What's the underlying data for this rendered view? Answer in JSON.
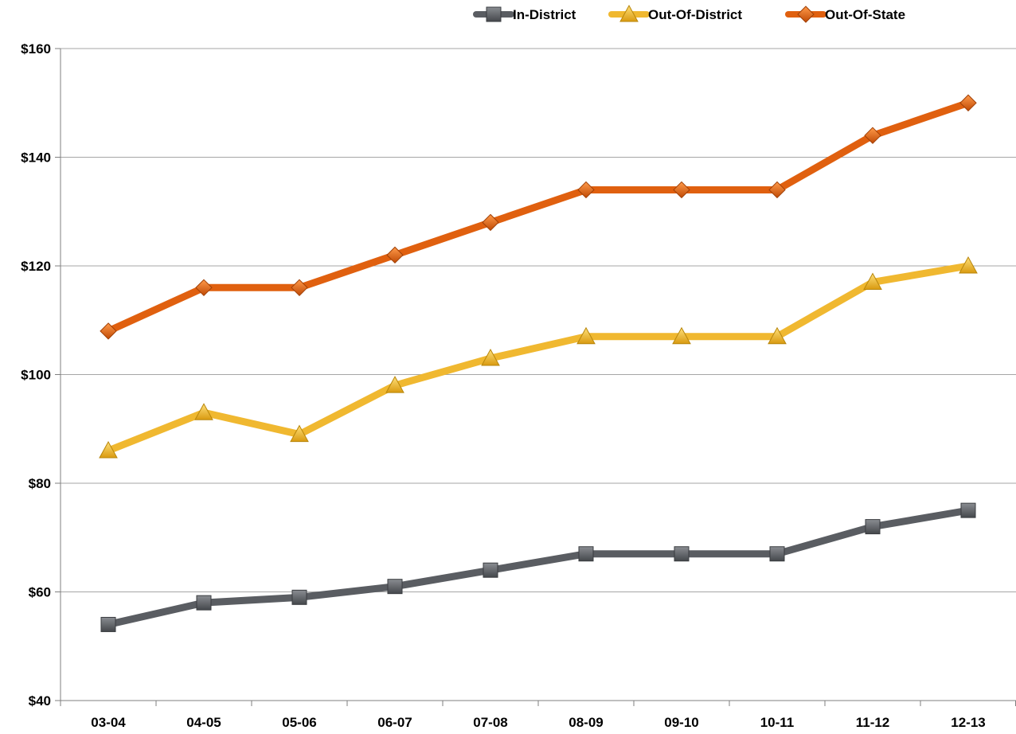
{
  "chart_data": {
    "type": "line",
    "categories": [
      "03-04",
      "04-05",
      "05-06",
      "06-07",
      "07-08",
      "08-09",
      "09-10",
      "10-11",
      "11-12",
      "12-13"
    ],
    "ylim": [
      40,
      160
    ],
    "yticks": [
      40,
      60,
      80,
      100,
      120,
      140,
      160
    ],
    "ytick_labels": [
      "$40",
      "$60",
      "$80",
      "$100",
      "$120",
      "$140",
      "$160"
    ],
    "grid": "horizontal",
    "legend_position": "top-right",
    "series": [
      {
        "name": "In-District",
        "marker": "square",
        "color": "#5a5d62",
        "values": [
          54,
          58,
          59,
          61,
          64,
          67,
          67,
          67,
          72,
          75
        ]
      },
      {
        "name": "Out-Of-District",
        "marker": "triangle",
        "color": "#f0b830",
        "values": [
          86,
          93,
          89,
          98,
          103,
          107,
          107,
          107,
          117,
          120
        ]
      },
      {
        "name": "Out-Of-State",
        "marker": "diamond",
        "color": "#e0600f",
        "values": [
          108,
          116,
          116,
          122,
          128,
          134,
          134,
          134,
          144,
          150
        ]
      }
    ]
  }
}
